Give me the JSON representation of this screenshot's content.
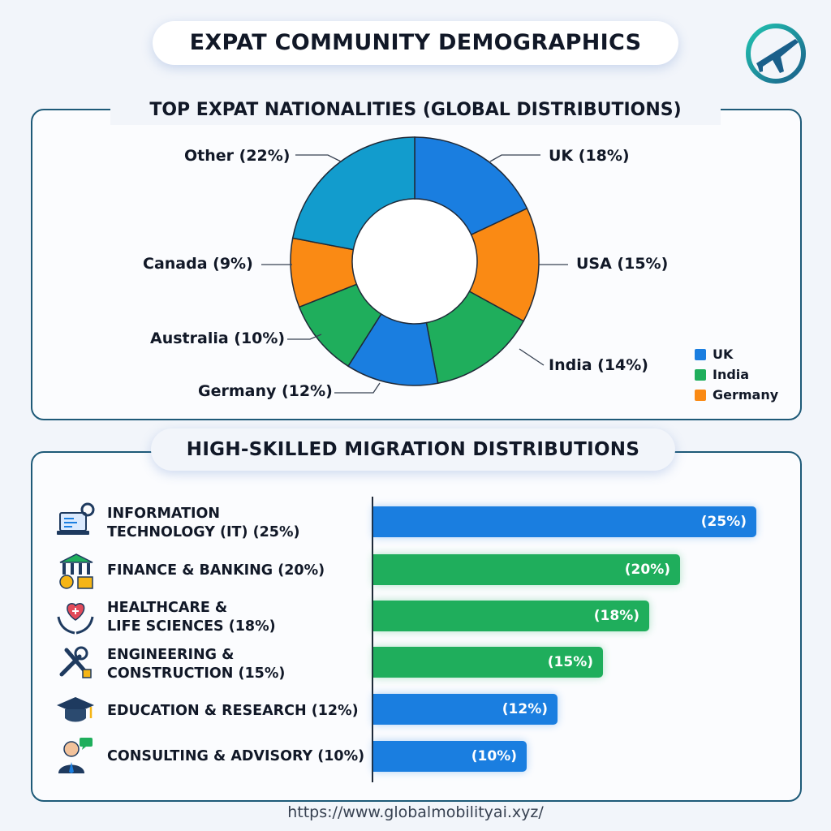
{
  "title": "EXPAT COMMUNITY DEMOGRAPHICS",
  "logo": {
    "icon": "airplane-globe-icon"
  },
  "footer": {
    "url": "https://www.globalmobilityai.xyz/"
  },
  "colors": {
    "blue": "#1a7ee0",
    "orange": "#fa8a14",
    "green": "#1fae5c",
    "teal": "#129ccd",
    "border": "#1e5a78"
  },
  "chart_data": [
    {
      "type": "pie",
      "title": "TOP EXPAT NATIONALITIES (GLOBAL DISTRIBUTIONS)",
      "slices": [
        {
          "label": "UK (18%)",
          "name": "UK",
          "value": 18,
          "color": "#1a7ee0"
        },
        {
          "label": "USA (15%)",
          "name": "USA",
          "value": 15,
          "color": "#fa8a14"
        },
        {
          "label": "India (14%)",
          "name": "India",
          "value": 14,
          "color": "#1fae5c"
        },
        {
          "label": "Germany (12%)",
          "name": "Germany",
          "value": 12,
          "color": "#1a7ee0"
        },
        {
          "label": "Australia (10%)",
          "name": "Australia",
          "value": 10,
          "color": "#1fae5c"
        },
        {
          "label": "Canada (9%)",
          "name": "Canada",
          "value": 9,
          "color": "#fa8a14"
        },
        {
          "label": "Other (22%)",
          "name": "Other",
          "value": 22,
          "color": "#129ccd"
        }
      ],
      "legend": [
        {
          "label": "UK",
          "color": "#1a7ee0"
        },
        {
          "label": "India",
          "color": "#1fae5c"
        },
        {
          "label": "Germany",
          "color": "#fa8a14"
        }
      ],
      "legend_position": "bottom-right"
    },
    {
      "type": "bar",
      "orientation": "horizontal",
      "title": "HIGH-SKILLED MIGRATION DISTRIBUTIONS",
      "categories": [
        "INFORMATION\nTECHNOLOGY (IT) (25%)",
        "FINANCE & BANKING (20%)",
        "HEALTHCARE &\nLIFE SCIENCES (18%)",
        "ENGINEERING &\nCONSTRUCTION (15%)",
        "EDUCATION & RESEARCH (12%)",
        "CONSULTING & ADVISORY (10%)"
      ],
      "values": [
        25,
        20,
        18,
        15,
        12,
        10
      ],
      "value_labels": [
        "(25%)",
        "(20%)",
        "(18%)",
        "(15%)",
        "(12%)",
        "(10%)"
      ],
      "colors": [
        "#1a7ee0",
        "#1fae5c",
        "#1fae5c",
        "#1fae5c",
        "#1a7ee0",
        "#1a7ee0"
      ],
      "icons": [
        "laptop-gear-icon",
        "bank-coins-icon",
        "heart-hands-icon",
        "wrench-tools-icon",
        "graduation-cap-icon",
        "consultant-icon"
      ],
      "xlim": [
        0,
        25
      ],
      "grid": false
    }
  ]
}
